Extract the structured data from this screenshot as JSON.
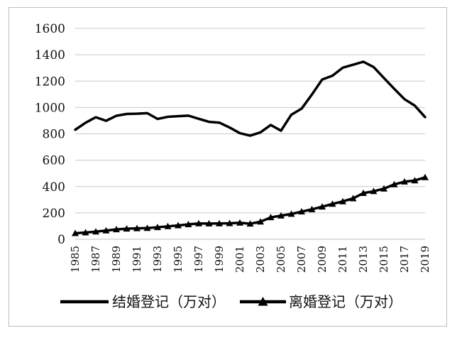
{
  "chart_data": {
    "type": "line",
    "title": "",
    "xlabel": "",
    "ylabel": "",
    "ylim": [
      0,
      1600
    ],
    "yticks": [
      "0",
      "200",
      "400",
      "600",
      "800",
      "1000",
      "1200",
      "1400",
      "1600"
    ],
    "x": [
      1985,
      1986,
      1987,
      1988,
      1989,
      1990,
      1991,
      1992,
      1993,
      1994,
      1995,
      1996,
      1997,
      1998,
      1999,
      2000,
      2001,
      2002,
      2003,
      2004,
      2005,
      2006,
      2007,
      2008,
      2009,
      2010,
      2011,
      2012,
      2013,
      2014,
      2015,
      2016,
      2017,
      2018,
      2019
    ],
    "xtick_labels": [
      "1985",
      "1987",
      "1989",
      "1991",
      "1993",
      "1995",
      "1997",
      "1999",
      "2001",
      "2003",
      "2005",
      "2007",
      "2009",
      "2011",
      "2013",
      "2015",
      "2017",
      "2019"
    ],
    "grid": true,
    "legend_position": "bottom",
    "series": [
      {
        "name": "结婚登记（万对）",
        "color": "#000000",
        "marker": "none",
        "values": [
          831,
          884,
          926,
          899,
          937,
          951,
          953,
          957,
          913,
          929,
          934,
          938,
          914,
          891,
          885,
          848,
          805,
          786,
          811,
          867,
          824,
          945,
          991,
          1098,
          1212,
          1241,
          1302,
          1324,
          1347,
          1307,
          1224,
          1142,
          1063,
          1014,
          927
        ]
      },
      {
        "name": "离婚登记（万对）",
        "color": "#000000",
        "marker": "triangle",
        "values": [
          46,
          51,
          58,
          66,
          75,
          80,
          83,
          85,
          91,
          98,
          105,
          113,
          120,
          119,
          120,
          121,
          125,
          118,
          133,
          166,
          179,
          192,
          210,
          227,
          247,
          268,
          287,
          310,
          350,
          364,
          384,
          416,
          437,
          446,
          470
        ]
      }
    ]
  }
}
